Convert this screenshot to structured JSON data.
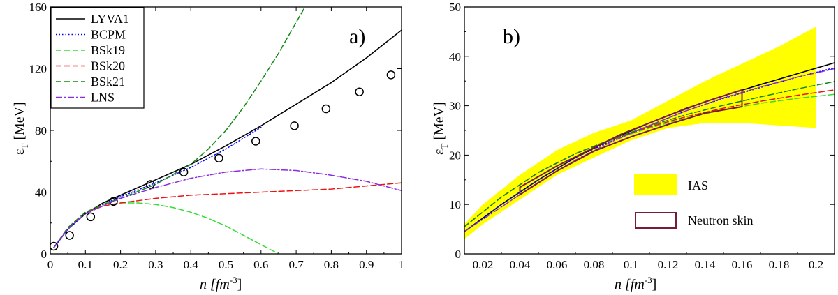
{
  "chart_data": [
    {
      "type": "line",
      "panel_label": "a)",
      "xlabel": "n [fm",
      "xlabel_sup": "-3",
      "xlabel_end": "]",
      "ylabel": "ε",
      "ylabel_sub": "T",
      "ylabel_end": " [MeV]",
      "xlim": [
        0,
        1
      ],
      "ylim": [
        0,
        160
      ],
      "xticks": [
        0,
        0.1,
        0.2,
        0.3,
        0.4,
        0.5,
        0.6,
        0.7,
        0.8,
        0.9,
        1
      ],
      "xtick_labels": [
        "0",
        "0.1",
        "0.2",
        "0.3",
        "0.4",
        "0.5",
        "0.6",
        "0.7",
        "0.8",
        "0.9",
        "1"
      ],
      "yticks": [
        0,
        40,
        80,
        120,
        160
      ],
      "ytick_labels": [
        "0",
        "40",
        "80",
        "120",
        "160"
      ],
      "legend_position": "top-left",
      "series": [
        {
          "name": "LYVA1",
          "color": "#000000",
          "dash": "solid",
          "x": [
            0.01,
            0.05,
            0.1,
            0.15,
            0.2,
            0.3,
            0.4,
            0.5,
            0.6,
            0.7,
            0.8,
            0.9,
            1.0
          ],
          "y": [
            4,
            16,
            26,
            33,
            38,
            48,
            58,
            70,
            83,
            97,
            111,
            127,
            145
          ]
        },
        {
          "name": "BCPM",
          "color": "#0000ff",
          "dash": "dotted",
          "x": [
            0.01,
            0.05,
            0.1,
            0.15,
            0.2,
            0.3,
            0.4,
            0.5,
            0.6
          ],
          "y": [
            4,
            16,
            26,
            32,
            37,
            46,
            56,
            68,
            82
          ]
        },
        {
          "name": "BSk19",
          "color": "#33dd33",
          "dash": "dashed",
          "x": [
            0.01,
            0.05,
            0.1,
            0.15,
            0.2,
            0.25,
            0.3,
            0.35,
            0.4,
            0.45,
            0.5,
            0.55,
            0.6,
            0.65
          ],
          "y": [
            4,
            17,
            27,
            31,
            33,
            33,
            32,
            30,
            27,
            23,
            18,
            12,
            6,
            0
          ]
        },
        {
          "name": "BSk20",
          "color": "#ee1111",
          "dash": "dashed",
          "x": [
            0.01,
            0.05,
            0.1,
            0.15,
            0.2,
            0.3,
            0.4,
            0.5,
            0.6,
            0.7,
            0.8,
            0.9,
            1.0
          ],
          "y": [
            4,
            17,
            27,
            31,
            33,
            36,
            38,
            39,
            40,
            41,
            42,
            44,
            46
          ]
        },
        {
          "name": "BSk21",
          "color": "#118811",
          "dash": "dashed",
          "x": [
            0.01,
            0.05,
            0.1,
            0.15,
            0.2,
            0.3,
            0.4,
            0.45,
            0.5,
            0.55,
            0.6,
            0.65,
            0.7,
            0.725
          ],
          "y": [
            4,
            17,
            27,
            32,
            36,
            45,
            58,
            68,
            80,
            95,
            112,
            130,
            150,
            160
          ]
        },
        {
          "name": "LNS",
          "color": "#8a2be2",
          "dash": "dashdot",
          "x": [
            0.01,
            0.05,
            0.1,
            0.15,
            0.2,
            0.3,
            0.4,
            0.5,
            0.6,
            0.7,
            0.8,
            0.9,
            1.0
          ],
          "y": [
            4,
            16,
            26,
            31,
            36,
            43,
            49,
            53,
            55,
            54,
            51,
            47,
            41
          ]
        }
      ],
      "markers": {
        "name": "circles",
        "x": [
          0.01,
          0.055,
          0.115,
          0.18,
          0.285,
          0.38,
          0.48,
          0.585,
          0.695,
          0.785,
          0.88,
          0.97
        ],
        "y": [
          5,
          12,
          24,
          34,
          45,
          53,
          62,
          73,
          83,
          94,
          105,
          116
        ]
      }
    },
    {
      "type": "line",
      "panel_label": "b)",
      "xlabel": "n [fm",
      "xlabel_sup": "-3",
      "xlabel_end": "]",
      "ylabel": "ε",
      "ylabel_sub": "T",
      "ylabel_end": " [MeV]",
      "xlim": [
        0.01,
        0.21
      ],
      "ylim": [
        0,
        50
      ],
      "xticks": [
        0.02,
        0.04,
        0.06,
        0.08,
        0.1,
        0.12,
        0.14,
        0.16,
        0.18,
        0.2
      ],
      "xtick_labels": [
        "0.02",
        "0.04",
        "0.06",
        "0.08",
        "0.1",
        "0.12",
        "0.14",
        "0.16",
        "0.18",
        "0.2"
      ],
      "yticks": [
        0,
        10,
        20,
        30,
        40,
        50
      ],
      "ytick_labels": [
        "0",
        "10",
        "20",
        "30",
        "40",
        "50"
      ],
      "legend_position": "bottom-right",
      "bands": [
        {
          "name": "IAS",
          "color": "#ffff00",
          "x": [
            0.01,
            0.02,
            0.04,
            0.06,
            0.08,
            0.1,
            0.12,
            0.14,
            0.16,
            0.18,
            0.2
          ],
          "upper": [
            6,
            10,
            16,
            21,
            24.5,
            27,
            31,
            35,
            38.5,
            42,
            46
          ],
          "lower": [
            3,
            6,
            11,
            16,
            19.5,
            23,
            25.5,
            26.5,
            26.5,
            26,
            25.5
          ]
        }
      ],
      "polygons": [
        {
          "name": "Neutron skin",
          "color": "#7a1a3a",
          "points_x": [
            0.04,
            0.06,
            0.08,
            0.095,
            0.12,
            0.14,
            0.16,
            0.16,
            0.14,
            0.12,
            0.1,
            0.08,
            0.06,
            0.04
          ],
          "points_y": [
            13.5,
            17.8,
            21.5,
            24.3,
            28,
            30.8,
            33.2,
            29.8,
            28.5,
            26.2,
            23.7,
            20.8,
            16.8,
            12.0
          ]
        }
      ],
      "series": [
        {
          "name": "LYVA1",
          "color": "#000000",
          "dash": "solid",
          "x": [
            0.01,
            0.03,
            0.05,
            0.07,
            0.09,
            0.11,
            0.13,
            0.15,
            0.17,
            0.19,
            0.21
          ],
          "y": [
            4.5,
            10,
            15,
            19.5,
            23.3,
            26.5,
            29.5,
            32,
            34.3,
            36.5,
            38.7
          ]
        },
        {
          "name": "BCPM",
          "color": "#0000ff",
          "dash": "dotted",
          "x": [
            0.01,
            0.03,
            0.05,
            0.07,
            0.09,
            0.11,
            0.13,
            0.15,
            0.17,
            0.19,
            0.21
          ],
          "y": [
            4.5,
            10,
            15,
            19.5,
            23,
            26,
            29,
            31.5,
            33.7,
            35.8,
            37.7
          ]
        },
        {
          "name": "BSk19",
          "color": "#33dd33",
          "dash": "dashed",
          "x": [
            0.01,
            0.03,
            0.05,
            0.07,
            0.09,
            0.11,
            0.13,
            0.15,
            0.17,
            0.19,
            0.21
          ],
          "y": [
            5.5,
            11.5,
            16.5,
            20.3,
            23.1,
            25.5,
            27.5,
            29.2,
            30.5,
            31.5,
            32.3
          ]
        },
        {
          "name": "BSk20",
          "color": "#ee1111",
          "dash": "dashed",
          "x": [
            0.01,
            0.03,
            0.05,
            0.07,
            0.09,
            0.11,
            0.13,
            0.15,
            0.17,
            0.19,
            0.21
          ],
          "y": [
            5.5,
            11.5,
            16.5,
            20.3,
            23.2,
            25.7,
            27.8,
            29.5,
            30.9,
            32.1,
            33.2
          ]
        },
        {
          "name": "BSk21",
          "color": "#118811",
          "dash": "dashed",
          "x": [
            0.01,
            0.03,
            0.05,
            0.07,
            0.09,
            0.11,
            0.13,
            0.15,
            0.17,
            0.19,
            0.21
          ],
          "y": [
            5.5,
            11.5,
            16.5,
            20.3,
            23.3,
            25.9,
            28.2,
            30.1,
            31.8,
            33.4,
            34.9
          ]
        },
        {
          "name": "LNS",
          "color": "#8a2be2",
          "dash": "dashdot",
          "x": [
            0.01,
            0.03,
            0.05,
            0.07,
            0.09,
            0.11,
            0.13,
            0.15,
            0.17,
            0.19,
            0.21
          ],
          "y": [
            4.5,
            9.5,
            14.5,
            19,
            22.8,
            26,
            29,
            31.6,
            33.8,
            35.8,
            37.5
          ]
        }
      ],
      "legend": [
        {
          "name": "IAS",
          "kind": "band"
        },
        {
          "name": "Neutron skin",
          "kind": "polygon"
        }
      ]
    }
  ]
}
